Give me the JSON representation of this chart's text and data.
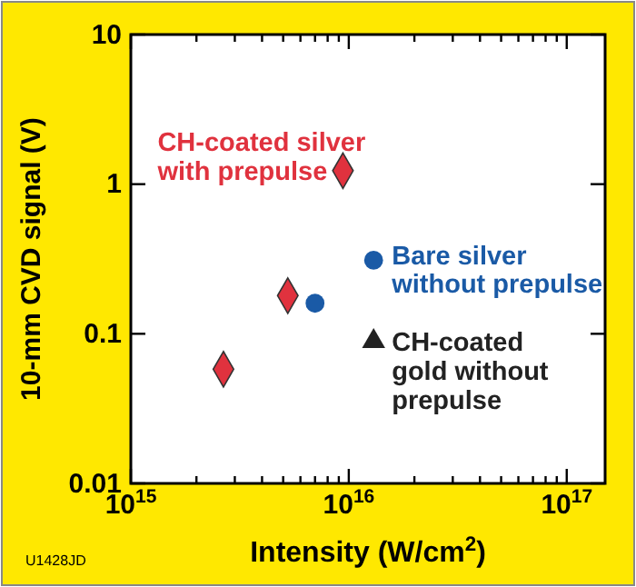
{
  "chart_data": {
    "type": "scatter",
    "xlabel": "Intensity (W/cm$^{2}$)",
    "ylabel": "10-mm CVD signal (V)",
    "log": "xy",
    "grid": false,
    "legend": false,
    "xlim": [
      1000000000000000.0,
      1.5e+17
    ],
    "ylim": [
      0.01,
      10
    ],
    "xticks": [
      {
        "value": 1000000000000000.0,
        "label": "10$^{15}$"
      },
      {
        "value": 2000000000000000.0,
        "label": null
      },
      {
        "value": 3000000000000000.0,
        "label": null
      },
      {
        "value": 4000000000000000.0,
        "label": null
      },
      {
        "value": 5000000000000000.0,
        "label": null
      },
      {
        "value": 6000000000000000.0,
        "label": null
      },
      {
        "value": 7000000000000000.0,
        "label": null
      },
      {
        "value": 8000000000000000.0,
        "label": null
      },
      {
        "value": 9000000000000000.0,
        "label": null
      },
      {
        "value": 1e+16,
        "label": "10$^{16}$"
      },
      {
        "value": 2e+16,
        "label": null
      },
      {
        "value": 3e+16,
        "label": null
      },
      {
        "value": 4e+16,
        "label": null
      },
      {
        "value": 5e+16,
        "label": null
      },
      {
        "value": 6e+16,
        "label": null
      },
      {
        "value": 7e+16,
        "label": null
      },
      {
        "value": 8e+16,
        "label": null
      },
      {
        "value": 9e+16,
        "label": null
      },
      {
        "value": 1e+17,
        "label": "10$^{17}$"
      }
    ],
    "yticks": [
      0.01,
      0.1,
      1,
      10
    ],
    "series": [
      {
        "name": "CH-coated silver\nwith prepulse",
        "color": "#e0323e",
        "marker": "diamond",
        "x": [
          2660000000000000.0,
          5250000000000000.0,
          9400000000000000.0
        ],
        "values": [
          0.058,
          0.18,
          1.23
        ]
      },
      {
        "name": "Bare silver\nwithout prepulse",
        "color": "#1a5aa6",
        "marker": "circle",
        "x": [
          7000000000000000.0,
          1.3e+16
        ],
        "values": [
          0.16,
          0.31
        ]
      },
      {
        "name": "CH-coated\ngold without\nprepulse",
        "color": "#222222",
        "marker": "triangle",
        "x": [
          1.3e+16
        ],
        "values": [
          0.089
        ]
      }
    ],
    "annotations": [
      "U1428JD"
    ]
  }
}
